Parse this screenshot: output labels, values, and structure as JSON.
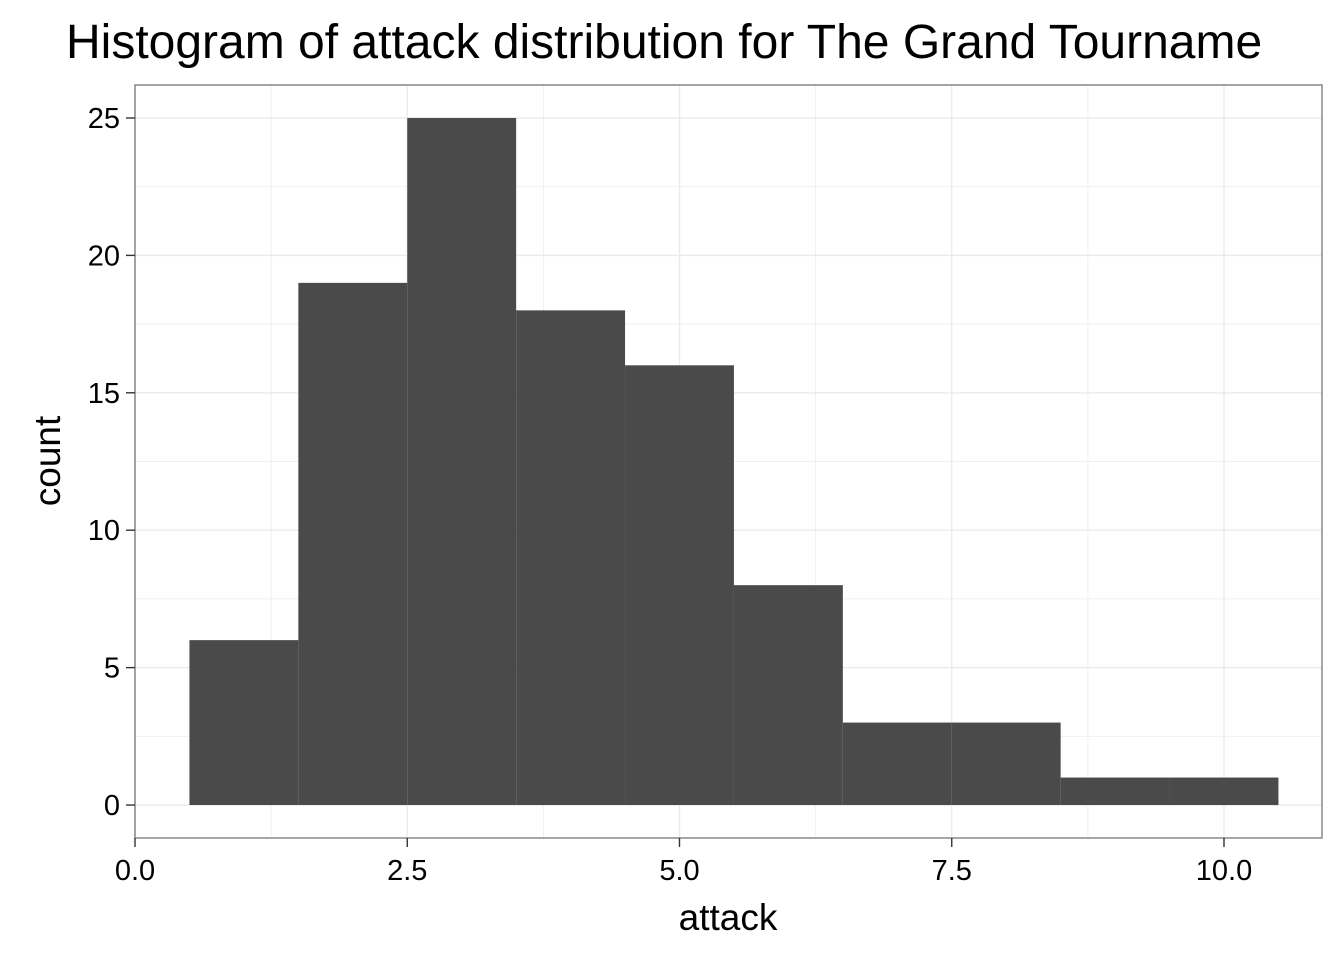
{
  "chart_data": {
    "type": "bar",
    "title": "Histogram of attack distribution for The Grand Tourname",
    "xlabel": "attack",
    "ylabel": "count",
    "bin_width": 1,
    "bins": [
      {
        "x0": 0.5,
        "x1": 1.5,
        "count": 6
      },
      {
        "x0": 1.5,
        "x1": 2.5,
        "count": 19
      },
      {
        "x0": 2.5,
        "x1": 3.5,
        "count": 25
      },
      {
        "x0": 3.5,
        "x1": 4.5,
        "count": 18
      },
      {
        "x0": 4.5,
        "x1": 5.5,
        "count": 16
      },
      {
        "x0": 5.5,
        "x1": 6.5,
        "count": 8
      },
      {
        "x0": 6.5,
        "x1": 7.5,
        "count": 3
      },
      {
        "x0": 7.5,
        "x1": 8.5,
        "count": 3
      },
      {
        "x0": 8.5,
        "x1": 9.5,
        "count": 1
      },
      {
        "x0": 9.5,
        "x1": 10.5,
        "count": 1
      }
    ],
    "xlim": [
      0,
      10.9
    ],
    "ylim": [
      -1.2,
      26.2
    ],
    "x_ticks": [
      {
        "value": 0,
        "label": "0.0"
      },
      {
        "value": 2.5,
        "label": "2.5"
      },
      {
        "value": 5,
        "label": "5.0"
      },
      {
        "value": 7.5,
        "label": "7.5"
      },
      {
        "value": 10,
        "label": "10.0"
      }
    ],
    "y_ticks": [
      {
        "value": 0,
        "label": "0"
      },
      {
        "value": 5,
        "label": "5"
      },
      {
        "value": 10,
        "label": "10"
      },
      {
        "value": 15,
        "label": "15"
      },
      {
        "value": 20,
        "label": "20"
      },
      {
        "value": 25,
        "label": "25"
      }
    ],
    "grid": true,
    "bar_color": "#4a4a4a",
    "grid_color": "#ebebeb",
    "panel_border_color": "#7f7f7f"
  }
}
